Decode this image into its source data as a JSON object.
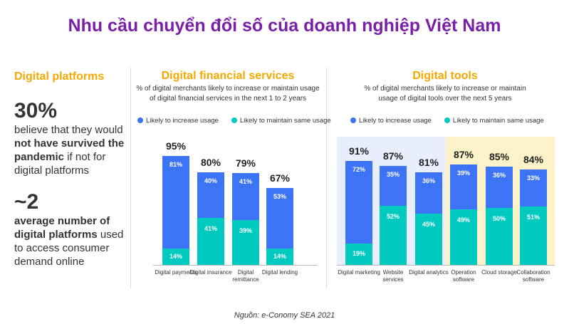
{
  "title": "Nhu cầu chuyển đổi số của doanh nghiệp Việt Nam",
  "left_panel": {
    "heading": "Digital platforms",
    "stat1": "30%",
    "stat1_pre": "believe that they would",
    "stat1_bold": "not have survived the pandemic",
    "stat1_post": "if not for digital platforms",
    "stat2": "~2",
    "stat2_bold1": "average number of",
    "stat2_bold2": "digital platforms",
    "stat2_post": "used to access consumer demand online"
  },
  "source": "Nguồn: e-Conomy SEA 2021",
  "colors": {
    "increase": "#3d73f5",
    "maintain": "#00c9c0",
    "blue_bg": "#e8eefc",
    "yellow_bg": "#fdf1c8"
  },
  "chart_data": [
    {
      "type": "bar",
      "stacked": true,
      "title": "Digital financial services",
      "subtitle_line1": "% of digital merchants likely to increase or maintain usage",
      "subtitle_line2": "of digital financial services in the next 1 to 2 years",
      "legend": [
        "Likely to increase usage",
        "Likely to maintain same usage"
      ],
      "categories": [
        "Digital payments",
        "Digital insurance",
        "Digital remittance",
        "Digital lending"
      ],
      "series": [
        {
          "name": "Likely to maintain same usage",
          "values": [
            14,
            41,
            39,
            14
          ]
        },
        {
          "name": "Likely to increase usage",
          "values": [
            81,
            40,
            41,
            53
          ]
        }
      ],
      "totals": [
        95,
        80,
        79,
        67
      ]
    },
    {
      "type": "bar",
      "stacked": true,
      "title": "Digital tools",
      "subtitle_line1": "% of digital merchants likely to increase or maintain",
      "subtitle_line2": "usage of digital tools over the next 5 years",
      "legend": [
        "Likely to increase usage",
        "Likely to maintain same usage"
      ],
      "categories": [
        "Digital marketing",
        "Website services",
        "Digital analytics",
        "Operation software",
        "Cloud storage",
        "Collaboration software"
      ],
      "series": [
        {
          "name": "Likely to maintain same usage",
          "values": [
            19,
            52,
            45,
            49,
            50,
            51
          ]
        },
        {
          "name": "Likely to increase usage",
          "values": [
            72,
            35,
            36,
            39,
            36,
            33
          ]
        }
      ],
      "totals": [
        91,
        87,
        81,
        87,
        85,
        84
      ]
    }
  ]
}
